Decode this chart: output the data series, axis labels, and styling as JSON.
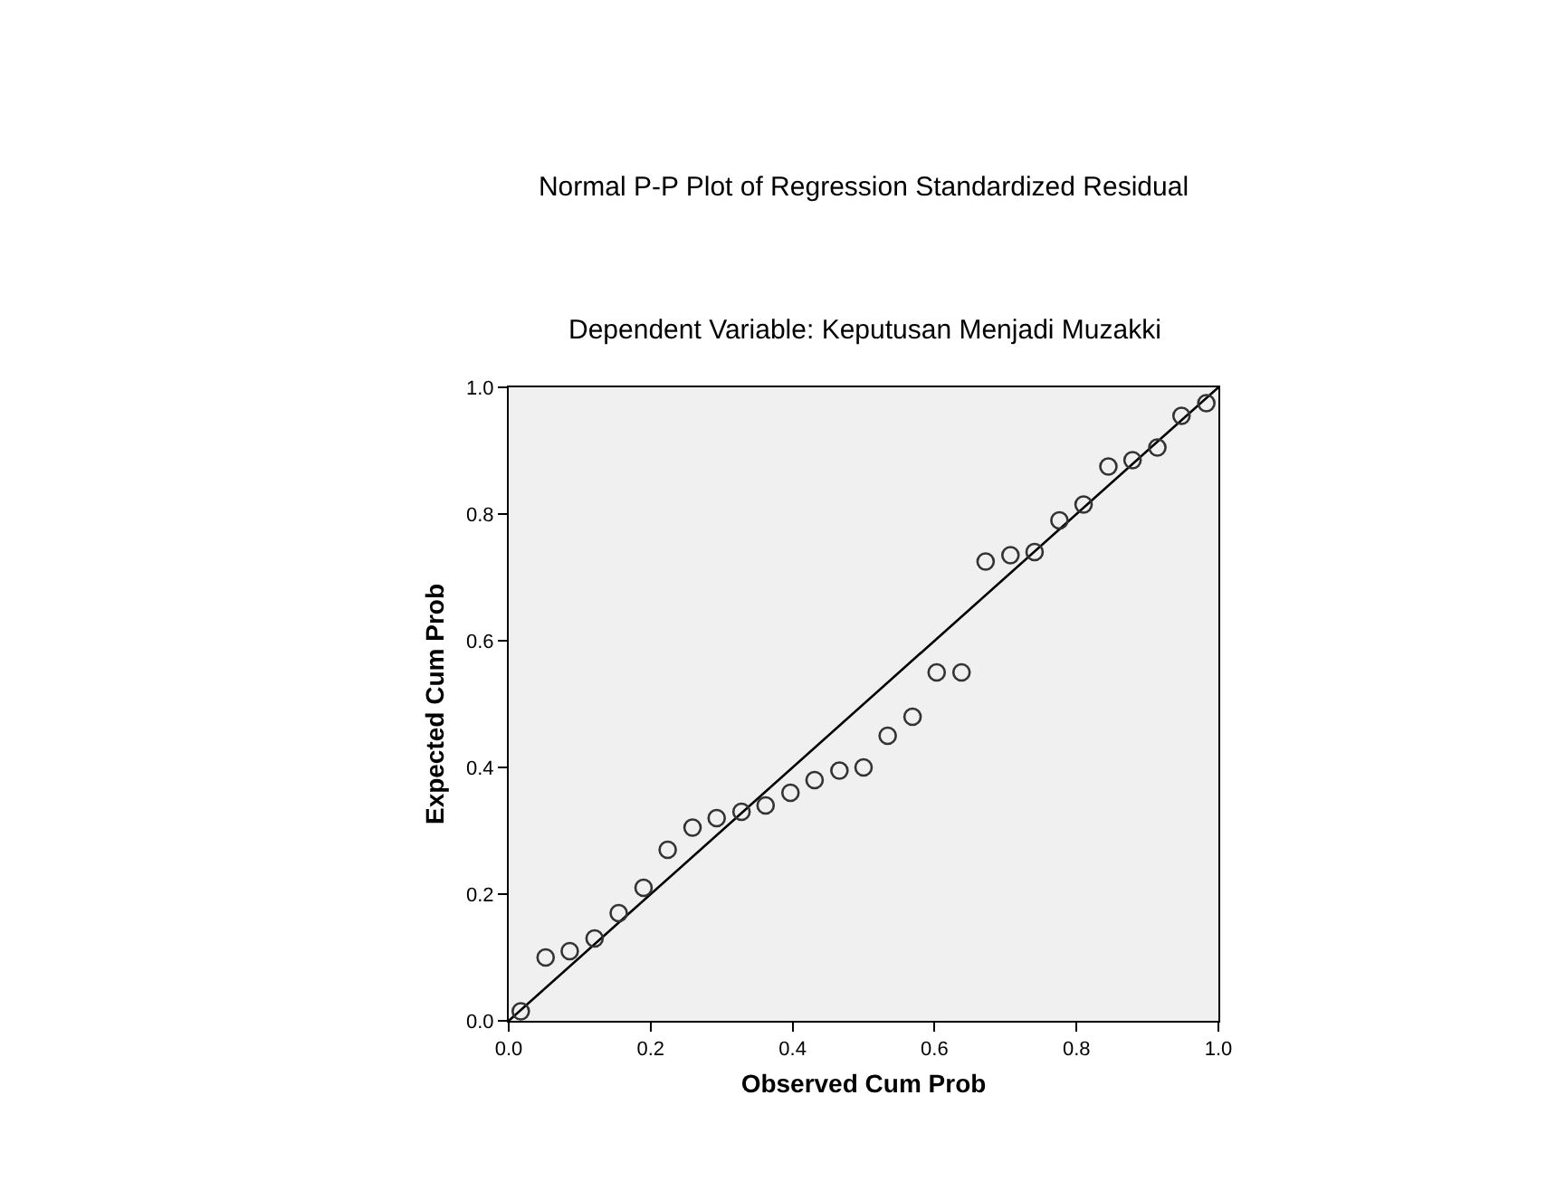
{
  "chart_data": {
    "type": "scatter",
    "title": "Normal P-P Plot of Regression Standardized Residual",
    "subtitle": "Dependent Variable: Keputusan Menjadi Muzakki",
    "xlabel": "Observed Cum Prob",
    "ylabel": "Expected Cum Prob",
    "x": [
      0.017,
      0.052,
      0.086,
      0.121,
      0.155,
      0.19,
      0.224,
      0.259,
      0.293,
      0.328,
      0.362,
      0.397,
      0.431,
      0.466,
      0.5,
      0.534,
      0.569,
      0.603,
      0.638,
      0.672,
      0.707,
      0.741,
      0.776,
      0.81,
      0.845,
      0.879,
      0.914,
      0.948,
      0.983
    ],
    "series": [
      {
        "color": "#333333",
        "marker": "circle",
        "values": [
          0.015,
          0.1,
          0.11,
          0.13,
          0.17,
          0.21,
          0.27,
          0.305,
          0.32,
          0.33,
          0.34,
          0.36,
          0.38,
          0.395,
          0.4,
          0.45,
          0.48,
          0.55,
          0.55,
          0.725,
          0.735,
          0.74,
          0.79,
          0.815,
          0.875,
          0.885,
          0.905,
          0.955,
          0.975
        ]
      },
      {
        "type": "line",
        "color": "#000000",
        "marker": "none",
        "line_style": "solid",
        "x": [
          0,
          1
        ],
        "values": [
          0,
          1
        ]
      }
    ],
    "xlim": [
      0,
      1
    ],
    "ylim": [
      0,
      1
    ],
    "xticks": [
      {
        "value": 0,
        "label": "0.0"
      },
      0.2,
      0.4,
      0.6,
      0.8,
      {
        "value": 1,
        "label": "1.0"
      }
    ],
    "yticks": [
      {
        "value": 0,
        "label": "0.0"
      },
      0.2,
      0.4,
      0.6,
      0.8,
      {
        "value": 1,
        "label": "1.0"
      }
    ],
    "grid": false
  }
}
